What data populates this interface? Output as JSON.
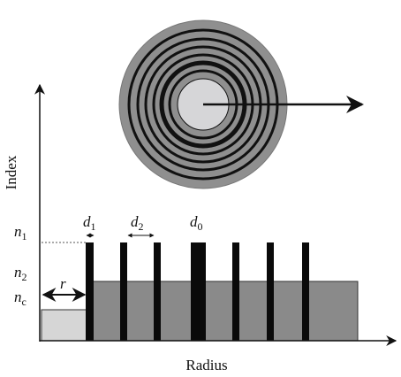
{
  "axes": {
    "y_label": "Index",
    "x_label": "Radius"
  },
  "labels": {
    "n1": {
      "main": "n",
      "sub": "1"
    },
    "n2": {
      "main": "n",
      "sub": "2"
    },
    "nc": {
      "main": "n",
      "sub": "c"
    },
    "r": "r",
    "d1": {
      "main": "d",
      "sub": "1"
    },
    "d2": {
      "main": "d",
      "sub": "2"
    },
    "d0": {
      "main": "d",
      "sub": "0"
    }
  }
}
